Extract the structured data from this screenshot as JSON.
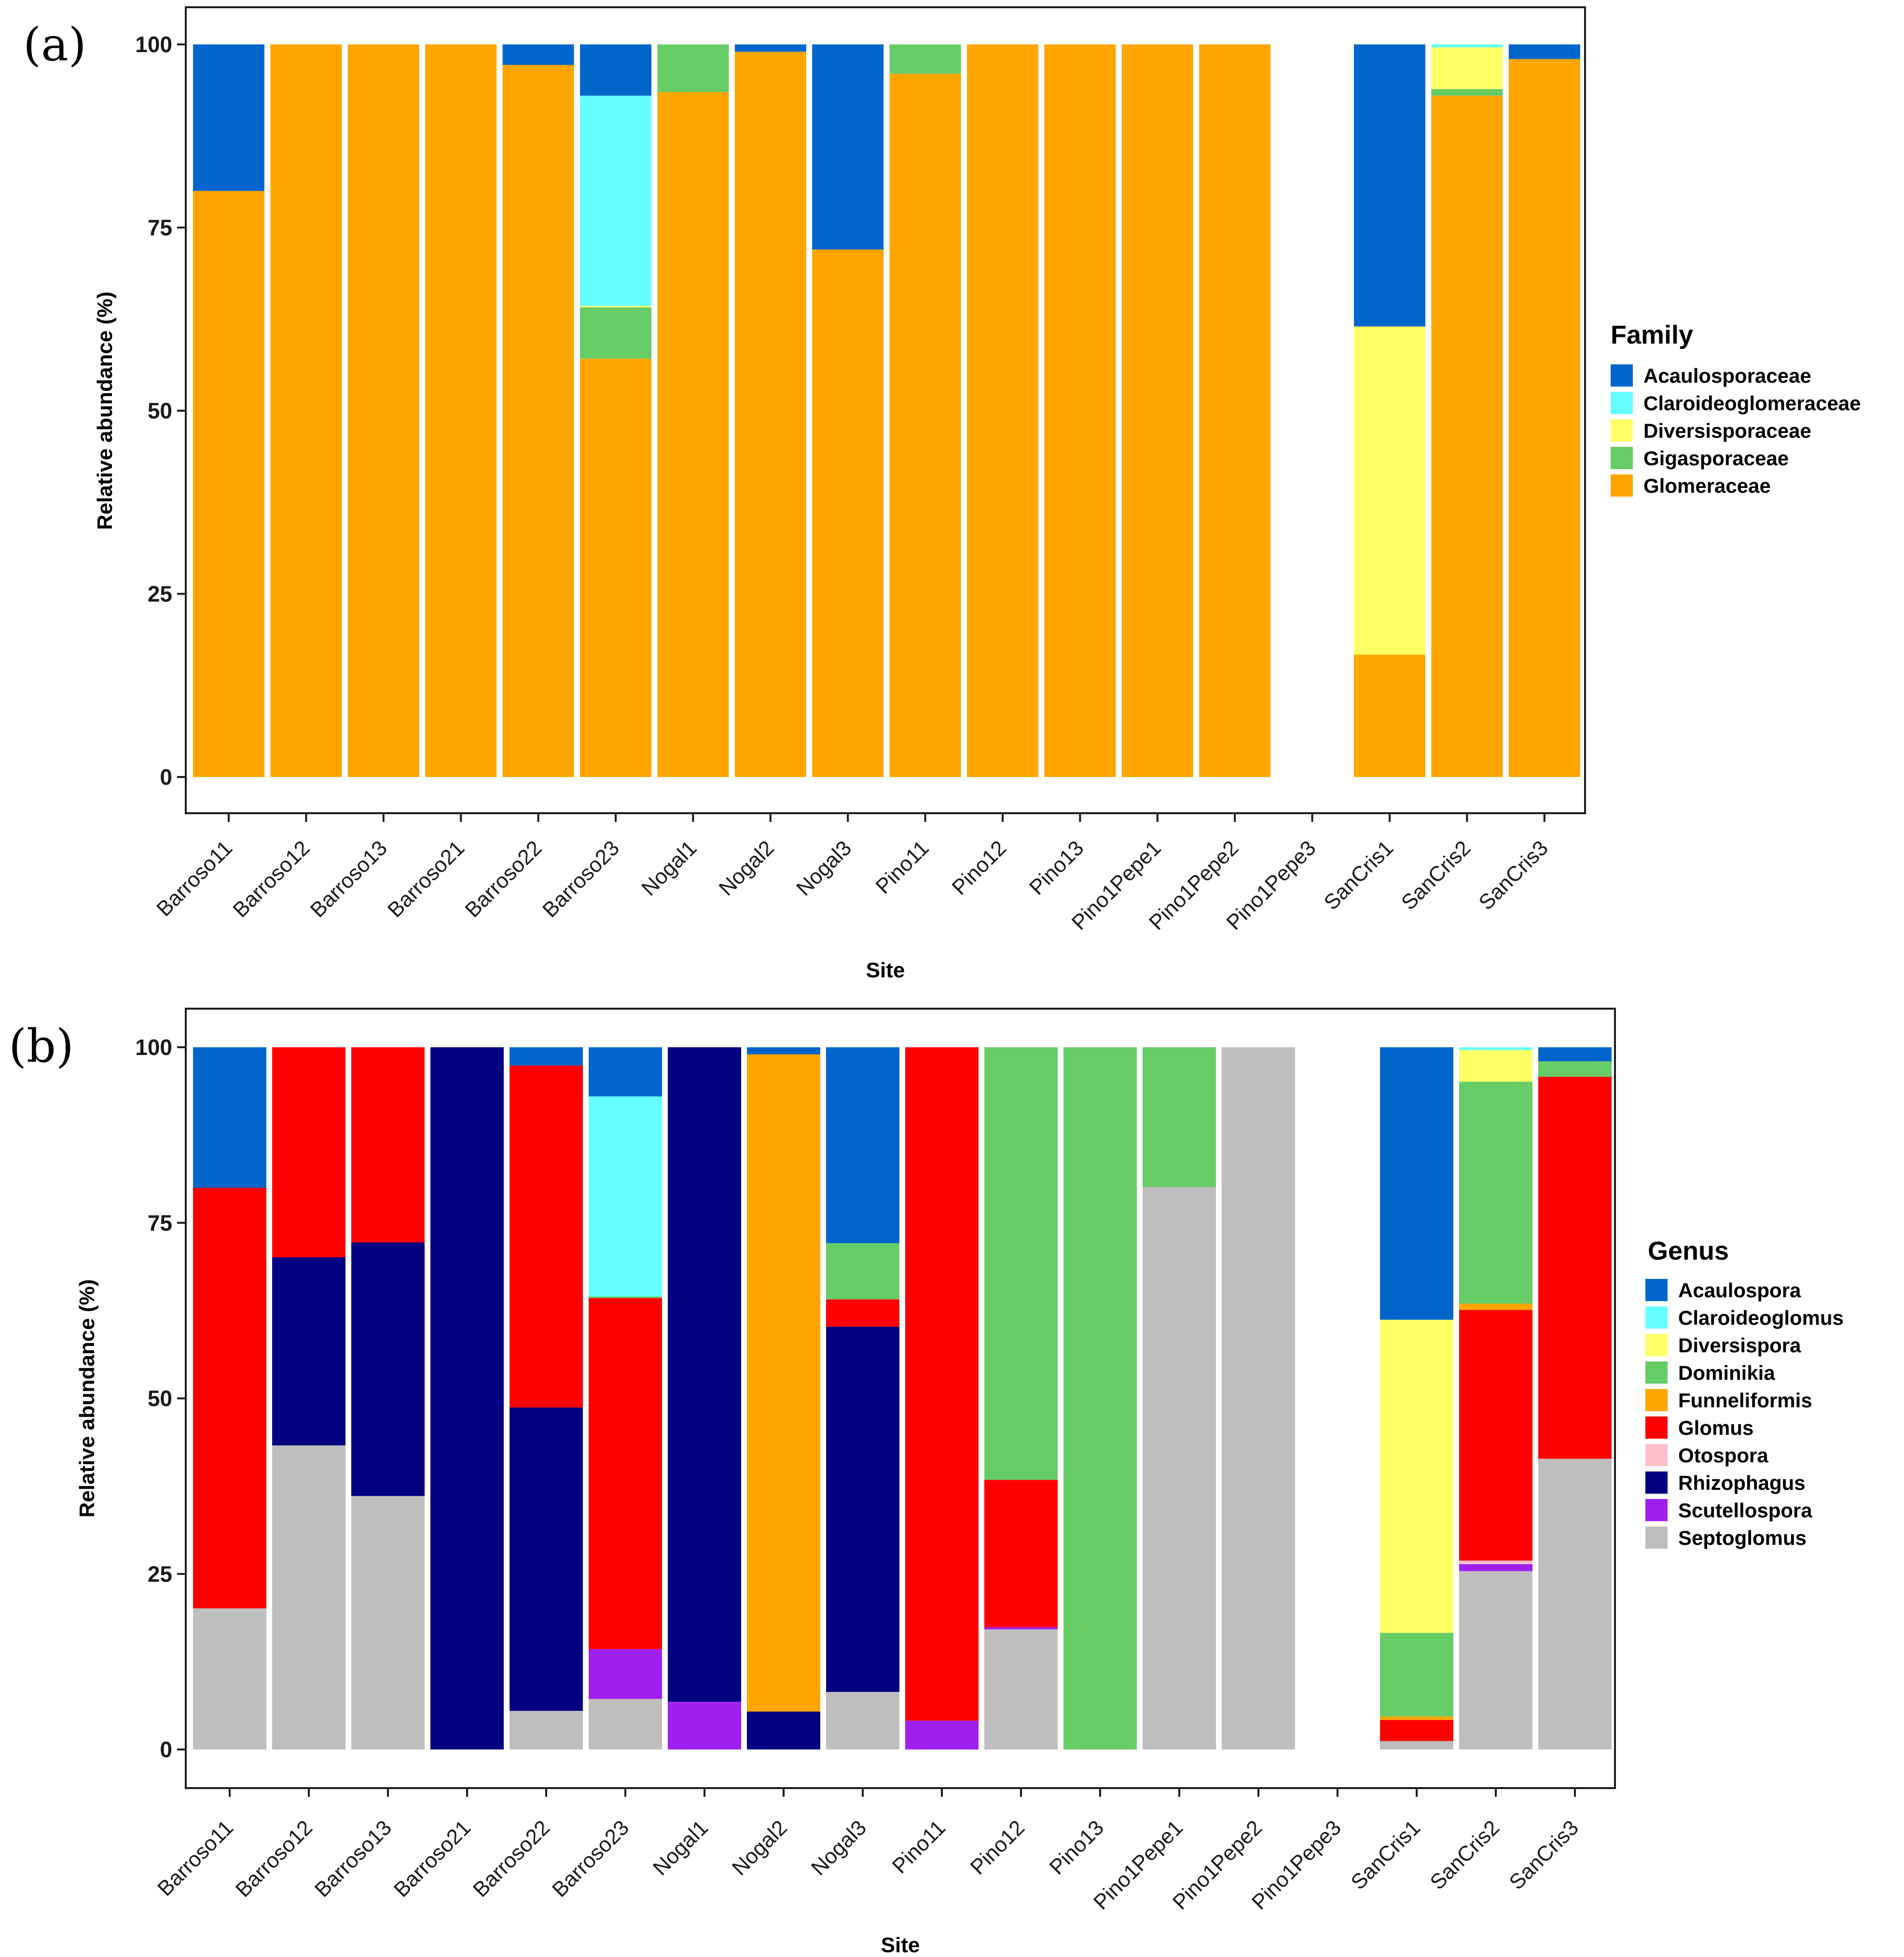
{
  "chart_data": [
    {
      "panel_label": "(a)",
      "type": "bar",
      "stacked": true,
      "xlabel": "Site",
      "ylabel": "Relative abundance (%)",
      "ylim": [
        0,
        100
      ],
      "yticks": [
        "0",
        "25",
        "50",
        "75",
        "100"
      ],
      "legend_title": "Family",
      "legend_position": "right",
      "categories": [
        "Barroso11",
        "Barroso12",
        "Barroso13",
        "Barroso21",
        "Barroso22",
        "Barroso23",
        "Nogal1",
        "Nogal2",
        "Nogal3",
        "Pino11",
        "Pino12",
        "Pino13",
        "Pino1Pepe1",
        "Pino1Pepe2",
        "Pino1Pepe3",
        "SanCris1",
        "SanCris2",
        "SanCris3"
      ],
      "series": [
        {
          "name": "Acaulosporaceae",
          "color": "#0066CC",
          "values": [
            20,
            0,
            0,
            0,
            2.8,
            7,
            0,
            1,
            28,
            0,
            0,
            0,
            0,
            0,
            0,
            38.5,
            0,
            2
          ]
        },
        {
          "name": "Claroideoglomeraceae",
          "color": "#66FFFF",
          "values": [
            0,
            0,
            0,
            0,
            0,
            28.7,
            0,
            0,
            0,
            0,
            0,
            0,
            0,
            0,
            0,
            0,
            0.4,
            0
          ]
        },
        {
          "name": "Diversisporaceae",
          "color": "#FFFF66",
          "values": [
            0,
            0,
            0,
            0,
            0,
            0.2,
            0,
            0,
            0,
            0,
            0,
            0,
            0,
            0,
            0,
            44.8,
            5.7,
            0
          ]
        },
        {
          "name": "Gigasporaceae",
          "color": "#66CC66",
          "values": [
            0,
            0,
            0,
            0,
            0,
            7,
            6.5,
            0,
            0,
            4,
            0,
            0,
            0,
            0,
            0,
            0,
            0.9,
            0
          ]
        },
        {
          "name": "Glomeraceae",
          "color": "#FFA500",
          "values": [
            80,
            100,
            100,
            100,
            97.2,
            57.1,
            93.5,
            99,
            72,
            96,
            100,
            100,
            100,
            100,
            0,
            16.7,
            93,
            98
          ]
        }
      ]
    },
    {
      "panel_label": "(b)",
      "type": "bar",
      "stacked": true,
      "xlabel": "Site",
      "ylabel": "Relative abundance (%)",
      "ylim": [
        0,
        100
      ],
      "yticks": [
        "0",
        "25",
        "50",
        "75",
        "100"
      ],
      "legend_title": "Genus",
      "legend_position": "right",
      "categories": [
        "Barroso11",
        "Barroso12",
        "Barroso13",
        "Barroso21",
        "Barroso22",
        "Barroso23",
        "Nogal1",
        "Nogal2",
        "Nogal3",
        "Pino11",
        "Pino12",
        "Pino13",
        "Pino1Pepe1",
        "Pino1Pepe2",
        "Pino1Pepe3",
        "SanCris1",
        "SanCris2",
        "SanCris3"
      ],
      "series": [
        {
          "name": "Septoglomus",
          "color": "#BEBEBE",
          "values": [
            20.1,
            43.3,
            36.1,
            0,
            5.5,
            7.2,
            0,
            0,
            8.2,
            0,
            17.1,
            0,
            80.1,
            100,
            0,
            1.2,
            25.4,
            41.4
          ]
        },
        {
          "name": "Scutellospora",
          "color": "#A020F0",
          "values": [
            0,
            0,
            0,
            0,
            0,
            7.1,
            6.8,
            0,
            0,
            4.1,
            0.3,
            0,
            0,
            0,
            0,
            0,
            1,
            0
          ]
        },
        {
          "name": "Rhizophagus",
          "color": "#000080",
          "values": [
            0,
            26.8,
            36.1,
            100,
            43.2,
            0,
            93.2,
            5.4,
            52,
            0,
            0,
            0,
            0,
            0,
            0,
            0,
            0,
            0
          ]
        },
        {
          "name": "Otospora",
          "color": "#FFC0CB",
          "values": [
            0,
            0,
            0,
            0,
            0,
            0,
            0,
            0,
            0,
            0,
            0,
            0,
            0,
            0,
            0,
            0,
            0.5,
            0
          ]
        },
        {
          "name": "Glomus",
          "color": "#FF0000",
          "values": [
            59.9,
            29.9,
            27.8,
            0,
            48.7,
            50,
            0,
            0,
            3.9,
            95.9,
            21,
            0,
            0,
            0,
            0,
            3,
            35.7,
            54.4
          ]
        },
        {
          "name": "Funneliformis",
          "color": "#FFA500",
          "values": [
            0,
            0,
            0,
            0,
            0,
            0,
            0,
            93.6,
            0,
            0,
            0,
            0,
            0,
            0,
            0,
            0.5,
            0.9,
            0
          ]
        },
        {
          "name": "Dominikia",
          "color": "#66CC66",
          "values": [
            0,
            0,
            0,
            0,
            0,
            0.2,
            0,
            0,
            8,
            0,
            61.6,
            100,
            19.9,
            0,
            0,
            11.9,
            31.6,
            2.2
          ]
        },
        {
          "name": "Diversispora",
          "color": "#FFFF66",
          "values": [
            0,
            0,
            0,
            0,
            0,
            0,
            0,
            0,
            0,
            0,
            0,
            0,
            0,
            0,
            0,
            44.6,
            4.5,
            0
          ]
        },
        {
          "name": "Claroideoglomus",
          "color": "#66FFFF",
          "values": [
            0,
            0,
            0,
            0,
            0,
            28.5,
            0,
            0,
            0,
            0,
            0,
            0,
            0,
            0,
            0,
            0,
            0.4,
            0
          ]
        },
        {
          "name": "Acaulospora",
          "color": "#0066CC",
          "values": [
            20,
            0,
            0,
            0,
            2.6,
            7,
            0,
            1,
            27.9,
            0,
            0,
            0,
            0,
            0,
            0,
            38.8,
            0,
            2
          ]
        }
      ],
      "legend_order": [
        "Acaulospora",
        "Claroideoglomus",
        "Diversispora",
        "Dominikia",
        "Funneliformis",
        "Glomus",
        "Otospora",
        "Rhizophagus",
        "Scutellospora",
        "Septoglomus"
      ]
    }
  ]
}
